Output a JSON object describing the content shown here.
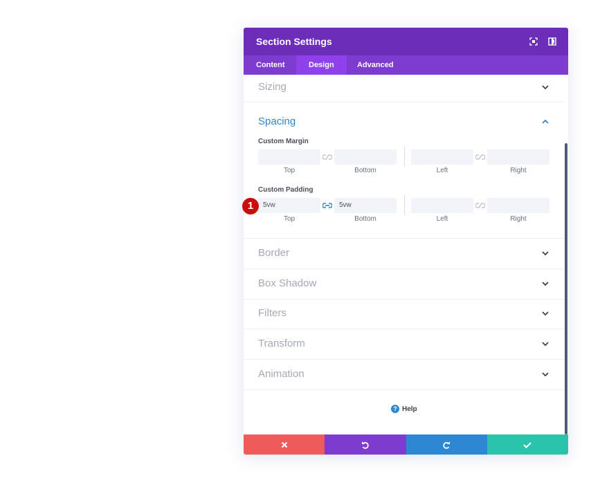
{
  "modal": {
    "title": "Section Settings",
    "tabs": [
      "Content",
      "Design",
      "Advanced"
    ],
    "active_tab": "Design"
  },
  "sections": {
    "sizing": "Sizing",
    "spacing": "Spacing",
    "border": "Border",
    "box_shadow": "Box Shadow",
    "filters": "Filters",
    "transform": "Transform",
    "animation": "Animation"
  },
  "margin": {
    "title": "Custom Margin",
    "top": "",
    "bottom": "",
    "left": "",
    "right": "",
    "labels": [
      "Top",
      "Bottom",
      "Left",
      "Right"
    ]
  },
  "padding": {
    "title": "Custom Padding",
    "top": "5vw",
    "bottom": "5vw",
    "left": "",
    "right": "",
    "labels": [
      "Top",
      "Bottom",
      "Left",
      "Right"
    ]
  },
  "badge": "1",
  "help_label": "Help",
  "colors": {
    "header": "#6c2eb9",
    "tabs": "#7e3bd0",
    "active_tab": "#8f42ec",
    "accent_blue": "#2e87d1",
    "cancel": "#ef5a5a",
    "undo": "#7e3bd0",
    "redo": "#2e87d1",
    "save": "#29c4a9"
  },
  "icons": {
    "fullscreen": "fullscreen-icon",
    "split": "split-view-icon",
    "link": "link-icon",
    "chevron_down": "chevron-down-icon",
    "chevron_up": "chevron-up-icon",
    "help": "help-icon",
    "close": "close-icon",
    "undo": "undo-icon",
    "redo": "redo-icon",
    "check": "check-icon"
  }
}
